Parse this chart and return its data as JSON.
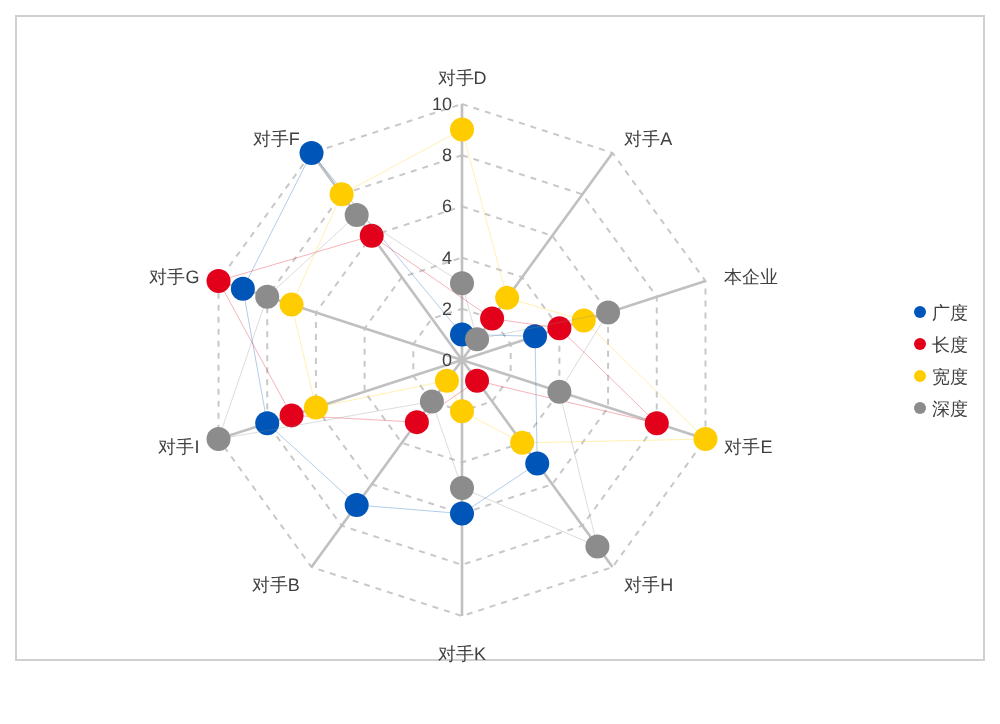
{
  "chart_data": {
    "type": "radar",
    "marker": "circle",
    "line_style": "none",
    "legend": "right",
    "ylim": [
      0,
      10
    ],
    "yticks": [
      0,
      2,
      4,
      6,
      8,
      10
    ],
    "grid": true,
    "categories": [
      "对手D",
      "对手A",
      "本企业",
      "对手E",
      "对手H",
      "对手K",
      "对手B",
      "对手I",
      "对手G",
      "对手F"
    ],
    "series": [
      {
        "name": "广度",
        "color": "#0055b8",
        "values": [
          1,
          null,
          3,
          null,
          5,
          6,
          7,
          8,
          9,
          10
        ]
      },
      {
        "name": "长度",
        "color": "#e3001b",
        "values": [
          null,
          2,
          4,
          8,
          1,
          null,
          3,
          7,
          10,
          6
        ]
      },
      {
        "name": "宽度",
        "color": "#ffcc00",
        "values": [
          9,
          3,
          5,
          10,
          4,
          2,
          1,
          6,
          7,
          8
        ]
      },
      {
        "name": "深度",
        "color": "#8c8c8c",
        "values": [
          3,
          1,
          6,
          4,
          9,
          5,
          2,
          10,
          8,
          7
        ]
      }
    ]
  }
}
